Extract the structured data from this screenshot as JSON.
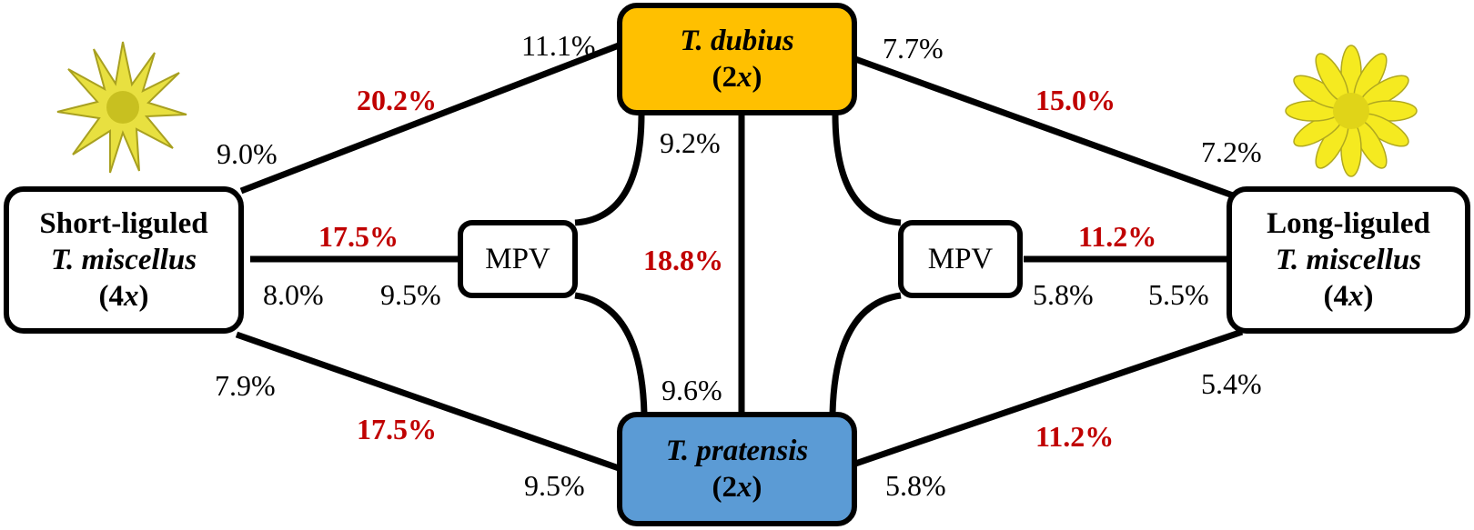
{
  "nodes": {
    "dubius": {
      "name": "T. dubius",
      "ploidy_pre": "(2",
      "ploidy_x": "x",
      "ploidy_post": ")",
      "color": "#ffc000"
    },
    "pratensis": {
      "name": "T. pratensis",
      "ploidy_pre": "(2",
      "ploidy_x": "x",
      "ploidy_post": ")",
      "color": "#5b9bd5"
    },
    "short": {
      "line1": "Short-liguled",
      "line2": "T. miscellus",
      "ploidy_pre": "(4",
      "ploidy_x": "x",
      "ploidy_post": ")"
    },
    "long": {
      "line1": "Long-liguled",
      "line2": "T. miscellus",
      "ploidy_pre": "(4",
      "ploidy_x": "x",
      "ploidy_post": ")"
    },
    "mpv_left": "MPV",
    "mpv_right": "MPV"
  },
  "labels": {
    "short_dubius_total": "20.2%",
    "short_dubius_end_short": "9.0%",
    "short_dubius_end_dubius": "11.1%",
    "dubius_long_total": "15.0%",
    "dubius_long_end_dubius": "7.7%",
    "dubius_long_end_long": "7.2%",
    "short_mpv_total": "17.5%",
    "short_mpv_end_short": "8.0%",
    "short_mpv_end_mpv": "9.5%",
    "long_mpv_total": "11.2%",
    "long_mpv_end_mpv": "5.8%",
    "long_mpv_end_long": "5.5%",
    "dubius_pratensis_total": "18.8%",
    "dubius_pratensis_end_dubius": "9.2%",
    "dubius_pratensis_end_pratensis": "9.6%",
    "short_pratensis_total": "17.5%",
    "short_pratensis_end_short": "7.9%",
    "short_pratensis_end_pratensis": "9.5%",
    "long_pratensis_total": "11.2%",
    "long_pratensis_end_long": "5.4%",
    "long_pratensis_end_pratensis": "5.8%"
  },
  "colors": {
    "total_label": "#c00000",
    "flower": "#f0e030",
    "flower_center": "#c8c020"
  }
}
